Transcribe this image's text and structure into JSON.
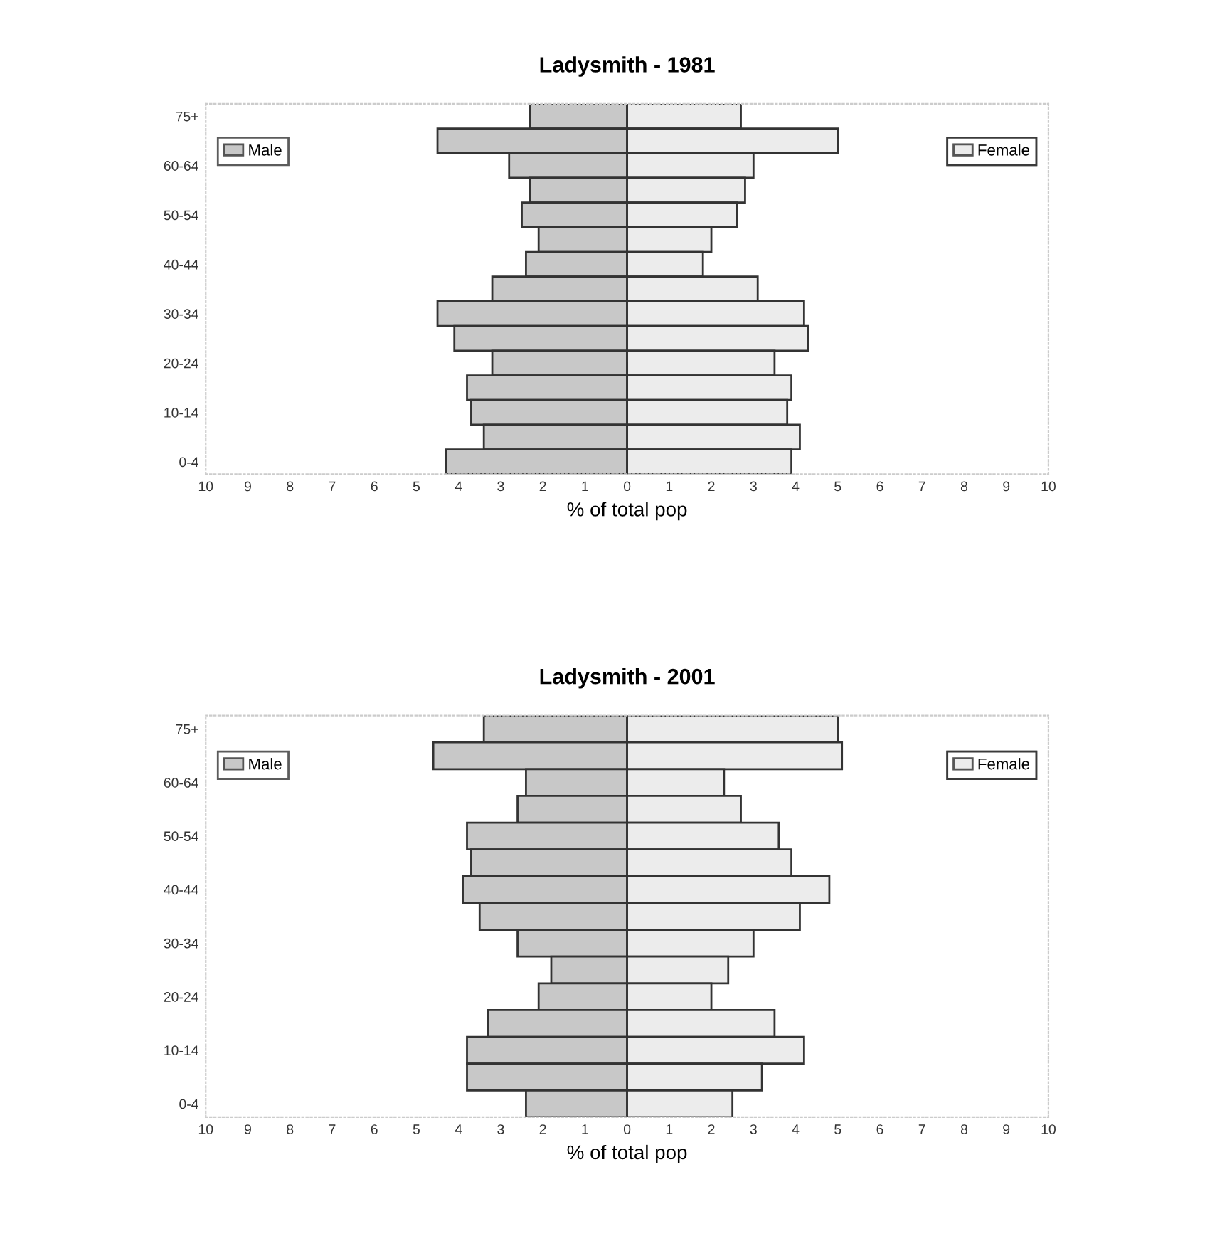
{
  "chart_data": [
    {
      "type": "bar",
      "title": "Ladysmith - 1981",
      "xlabel": "% of total pop",
      "orientation": "horizontal",
      "stacked": true,
      "legend": "top",
      "categories": [
        "75+",
        null,
        "60-64",
        null,
        "50-54",
        null,
        "40-44",
        null,
        "30-34",
        null,
        "20-24",
        null,
        "10-14",
        null,
        "0-4"
      ],
      "series": [
        {
          "name": "Male",
          "color": "#c8c8c8",
          "values": [
            -2.3,
            -4.5,
            -2.8,
            -2.3,
            -2.5,
            -2.1,
            -2.4,
            -3.2,
            -4.5,
            -4.1,
            -3.2,
            -3.8,
            -3.7,
            -3.4,
            -4.3
          ]
        },
        {
          "name": "Female",
          "color": "#ececec",
          "values": [
            2.7,
            5.0,
            3.0,
            2.8,
            2.6,
            2.0,
            1.8,
            3.1,
            4.2,
            4.3,
            3.5,
            3.9,
            3.8,
            4.1,
            3.9
          ]
        }
      ],
      "xlim": [
        -10,
        10
      ],
      "xticks": [
        {
          "value": -10,
          "label": "10"
        },
        {
          "value": -9,
          "label": "9"
        },
        {
          "value": -8,
          "label": "8"
        },
        {
          "value": -7,
          "label": "7"
        },
        {
          "value": -6,
          "label": "6"
        },
        {
          "value": -5,
          "label": "5"
        },
        {
          "value": -4,
          "label": "4"
        },
        {
          "value": -3,
          "label": "3"
        },
        {
          "value": -2,
          "label": "2"
        },
        {
          "value": -1,
          "label": "1"
        },
        0,
        1,
        2,
        3,
        4,
        5,
        6,
        7,
        8,
        9,
        10
      ]
    },
    {
      "type": "bar",
      "title": "Ladysmith - 2001",
      "xlabel": "% of total pop",
      "orientation": "horizontal",
      "stacked": true,
      "legend": "top",
      "categories": [
        "75+",
        null,
        "60-64",
        null,
        "50-54",
        null,
        "40-44",
        null,
        "30-34",
        null,
        "20-24",
        null,
        "10-14",
        null,
        "0-4"
      ],
      "series": [
        {
          "name": "Male",
          "color": "#c8c8c8",
          "values": [
            -3.4,
            -4.6,
            -2.4,
            -2.6,
            -3.8,
            -3.7,
            -3.9,
            -3.5,
            -2.6,
            -1.8,
            -2.1,
            -3.3,
            -3.8,
            -3.8,
            -2.4
          ]
        },
        {
          "name": "Female",
          "color": "#ececec",
          "values": [
            5.0,
            5.1,
            2.3,
            2.7,
            3.6,
            3.9,
            4.8,
            4.1,
            3.0,
            2.4,
            2.0,
            3.5,
            4.2,
            3.2,
            2.5
          ]
        }
      ],
      "xlim": [
        -10,
        10
      ],
      "xticks": [
        {
          "value": -10,
          "label": "10"
        },
        {
          "value": -9,
          "label": "9"
        },
        {
          "value": -8,
          "label": "8"
        },
        {
          "value": -7,
          "label": "7"
        },
        {
          "value": -6,
          "label": "6"
        },
        {
          "value": -5,
          "label": "5"
        },
        {
          "value": -4,
          "label": "4"
        },
        {
          "value": -3,
          "label": "3"
        },
        {
          "value": -2,
          "label": "2"
        },
        {
          "value": -1,
          "label": "1"
        },
        0,
        1,
        2,
        3,
        4,
        5,
        6,
        7,
        8,
        9,
        10
      ]
    }
  ]
}
